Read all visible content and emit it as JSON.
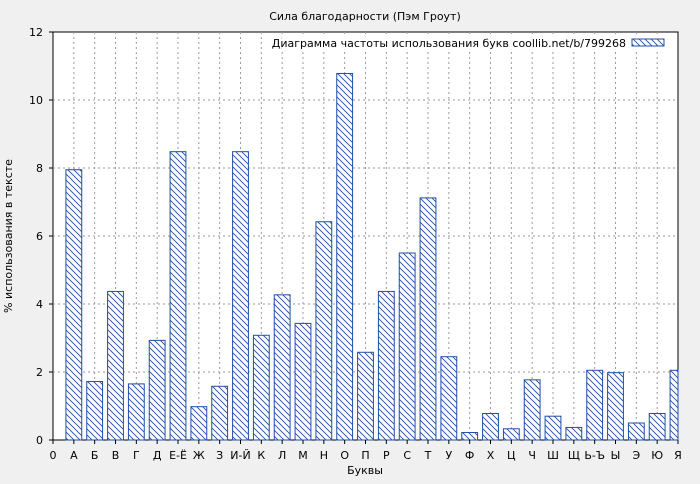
{
  "chart_data": {
    "type": "bar",
    "title": "Сила благодарности (Пэм Гроут)",
    "xlabel": "Буквы",
    "ylabel": "% использования в тексте",
    "ylim": [
      0,
      12
    ],
    "yticks": [
      "0",
      "2",
      "4",
      "6",
      "8",
      "10",
      "12"
    ],
    "grid": true,
    "legend_position": "top-right",
    "x_start_label": "0",
    "categories": [
      "А",
      "Б",
      "В",
      "Г",
      "Д",
      "Е-Ё",
      "Ж",
      "З",
      "И-Й",
      "К",
      "Л",
      "М",
      "Н",
      "О",
      "П",
      "Р",
      "С",
      "Т",
      "У",
      "Ф",
      "Х",
      "Ц",
      "Ч",
      "Ш",
      "Щ",
      "Ь-Ъ",
      "Ы",
      "Э",
      "Ю",
      "Я"
    ],
    "series": [
      {
        "name": "Диаграмма частоты использования букв coollib.net/b/799268",
        "color": "#1f4fa8",
        "values": [
          7.95,
          1.72,
          4.37,
          1.65,
          2.93,
          8.48,
          0.98,
          1.58,
          8.48,
          3.08,
          4.27,
          3.43,
          6.42,
          10.78,
          2.58,
          4.37,
          5.5,
          7.12,
          2.45,
          0.22,
          0.78,
          0.33,
          1.77,
          0.7,
          0.37,
          2.05,
          1.98,
          0.5,
          0.78,
          2.05
        ]
      }
    ]
  }
}
